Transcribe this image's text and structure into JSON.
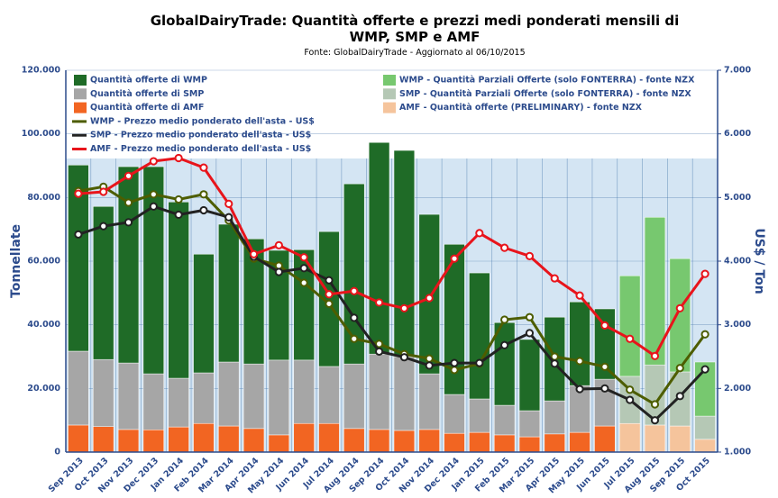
{
  "chart_data": {
    "type": "bar",
    "title": "GlobalDairyTrade: Quantità offerte e prezzi medi ponderati mensili di WMP, SMP e AMF",
    "subtitle": "Fonte: GlobalDairyTrade - Aggiornato al 06/10/2015",
    "ylabel": "Tonnellate",
    "y2label": "US$ / Ton",
    "categories": [
      "Sep 2013",
      "Oct 2013",
      "Nov 2013",
      "Dec 2013",
      "Jan 2014",
      "Feb 2014",
      "Mar 2014",
      "Apr 2014",
      "May 2014",
      "Jun 2014",
      "Jul 2014",
      "Aug 2014",
      "Sep 2014",
      "Oct 2014",
      "Nov 2014",
      "Dec 2014",
      "Jan 2015",
      "Feb 2015",
      "Mar 2015",
      "Apr 2015",
      "May 2015",
      "Jun 2015",
      "Jul 2015",
      "Aug 2015",
      "Sep 2015",
      "Oct 2015"
    ],
    "ylim": [
      0,
      120000
    ],
    "yticks": [
      0,
      {
        "value": 20000,
        "label": "20.000"
      },
      {
        "value": 40000,
        "label": "40.000"
      },
      {
        "value": 60000,
        "label": "60.000"
      },
      {
        "value": 80000,
        "label": "80.000"
      },
      {
        "value": 100000,
        "label": "100.000"
      },
      {
        "value": 120000,
        "label": "120.000"
      }
    ],
    "y2lim": [
      1,
      7
    ],
    "y2ticks": [
      {
        "value": 1,
        "label": "1.000"
      },
      {
        "value": 2,
        "label": "2.000"
      },
      {
        "value": 3,
        "label": "3.000"
      },
      {
        "value": 4,
        "label": "4.000"
      },
      {
        "value": 5,
        "label": "5.000"
      },
      {
        "value": 6,
        "label": "6.000"
      },
      {
        "value": 7,
        "label": "7.000"
      }
    ],
    "grid": true,
    "stacked": true,
    "series": [
      {
        "name": "Quantità offerte di WMP",
        "type": "bar",
        "color": "#1f6b27",
        "values": [
          58500,
          48100,
          61700,
          65100,
          55400,
          37300,
          43300,
          39300,
          34500,
          34700,
          42400,
          56600,
          66500,
          64800,
          50100,
          47200,
          39600,
          26000,
          22400,
          26300,
          26300,
          22100,
          null,
          null,
          null,
          null
        ]
      },
      {
        "name": "Quantità offerte di SMP",
        "type": "bar",
        "color": "#a6a6a6",
        "values": [
          23200,
          21100,
          20900,
          17600,
          15300,
          15900,
          20100,
          20300,
          23500,
          19900,
          17900,
          20300,
          23700,
          23200,
          17500,
          12200,
          10500,
          9300,
          8200,
          10400,
          14700,
          14700,
          null,
          null,
          null,
          null
        ]
      },
      {
        "name": "Quantità offerte di AMF",
        "type": "bar",
        "color": "#f26522",
        "values": [
          8500,
          8000,
          7100,
          7000,
          7900,
          9000,
          8200,
          7400,
          5400,
          9000,
          9000,
          7400,
          7100,
          6800,
          7100,
          5900,
          6200,
          5400,
          4800,
          5700,
          6200,
          8200,
          null,
          null,
          null,
          null
        ]
      },
      {
        "name": "WMP - Quantità Parziali Offerte (solo FONTERRA) - fonte NZX",
        "type": "bar",
        "color": "#77c86f",
        "values": [
          null,
          null,
          null,
          null,
          null,
          null,
          null,
          null,
          null,
          null,
          null,
          null,
          null,
          null,
          null,
          null,
          null,
          null,
          null,
          null,
          null,
          null,
          31600,
          46400,
          35600,
          17000
        ]
      },
      {
        "name": "SMP - Quantità Parziali Offerte (solo FONTERRA) - fonte NZX",
        "type": "bar",
        "color": "#b5c8b5",
        "values": [
          null,
          null,
          null,
          null,
          null,
          null,
          null,
          null,
          null,
          null,
          null,
          null,
          null,
          null,
          null,
          null,
          null,
          null,
          null,
          null,
          null,
          null,
          14800,
          18900,
          17000,
          7300
        ]
      },
      {
        "name": "AMF - Quantità offerte (PRELIMINARY) - fonte NZX",
        "type": "bar",
        "color": "#f5c49c",
        "values": [
          null,
          null,
          null,
          null,
          null,
          null,
          null,
          null,
          null,
          null,
          null,
          null,
          null,
          null,
          null,
          null,
          null,
          null,
          null,
          null,
          null,
          null,
          9000,
          8500,
          8200,
          4000
        ]
      },
      {
        "name": "WMP - Prezzo medio ponderato dell'asta - US$",
        "type": "line",
        "axis": "y2",
        "color": "#4d5d00",
        "values": [
          5.1,
          5.17,
          4.92,
          5.05,
          4.97,
          5.05,
          4.64,
          4.04,
          3.93,
          3.66,
          3.33,
          2.78,
          2.7,
          2.54,
          2.47,
          2.29,
          2.39,
          3.08,
          3.12,
          2.5,
          2.43,
          2.34,
          1.98,
          1.75,
          2.32,
          2.85
        ]
      },
      {
        "name": "SMP - Prezzo medio ponderato dell'asta - US$",
        "type": "line",
        "axis": "y2",
        "color": "#222222",
        "values": [
          4.42,
          4.55,
          4.61,
          4.86,
          4.73,
          4.8,
          4.69,
          4.07,
          3.83,
          3.89,
          3.7,
          3.11,
          2.58,
          2.49,
          2.36,
          2.4,
          2.4,
          2.68,
          2.87,
          2.39,
          1.99,
          2.0,
          1.82,
          1.5,
          1.88,
          2.3
        ]
      },
      {
        "name": "AMF - Prezzo medio ponderato dell'asta - US$",
        "type": "line",
        "axis": "y2",
        "color": "#e8141b",
        "values": [
          5.06,
          5.09,
          5.34,
          5.57,
          5.62,
          5.47,
          4.9,
          4.11,
          4.25,
          4.06,
          3.48,
          3.53,
          3.35,
          3.26,
          3.42,
          4.04,
          4.44,
          4.21,
          4.08,
          3.73,
          3.46,
          2.99,
          2.78,
          2.51,
          3.26,
          3.8
        ]
      }
    ]
  }
}
